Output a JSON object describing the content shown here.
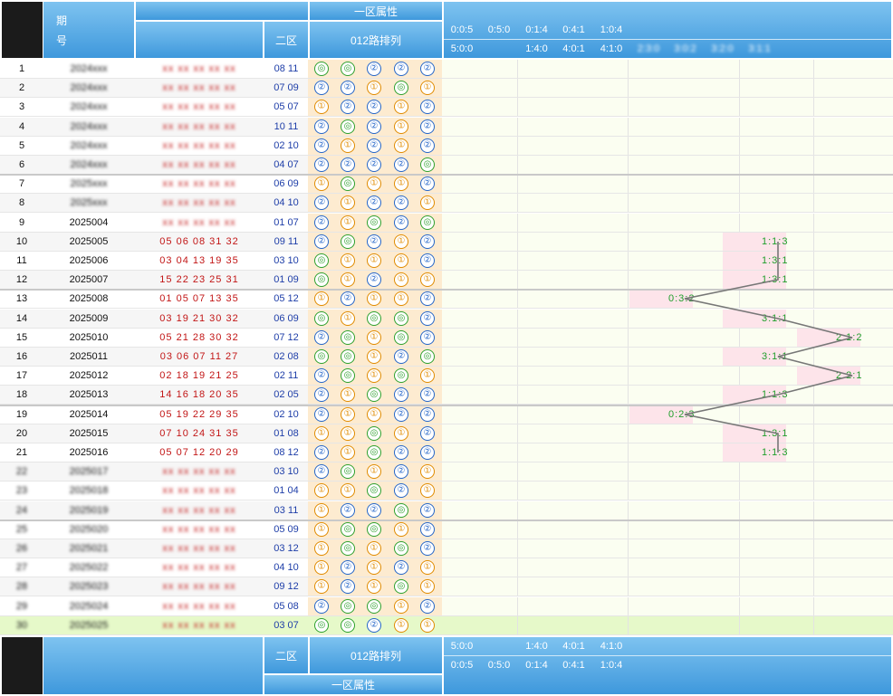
{
  "header": {
    "issue_label_top": "期",
    "issue_label_bottom": "号",
    "zone2_label": "二区",
    "pattern_label": "012路排列",
    "zone1_attr_label": "一区属性",
    "ratios_row1": [
      "0:0:5",
      "0:5:0",
      "0:1:4",
      "0:4:1",
      "1:0:4"
    ],
    "ratios_row2": [
      "5:0:0",
      "",
      "1:4:0",
      "4:0:1",
      "4:1:0",
      "2:3:0",
      "3:0:2",
      "3:2:0",
      "3:1:1"
    ]
  },
  "footer": {
    "zone2_label": "二区",
    "pattern_label": "012路排列",
    "zone1_attr_label": "一区属性",
    "ratios_row1": [
      "5:0:0",
      "",
      "1:4:0",
      "4:0:1",
      "4:1:0"
    ],
    "ratios_row2": [
      "0:0:5",
      "0:5:0",
      "0:1:4",
      "0:4:1",
      "1:0:4"
    ]
  },
  "rows": [
    {
      "idx": "1",
      "issue": "2024xxx",
      "nums": "xx xx xx xx xx",
      "zone2": "08 11",
      "pattern": [
        "0",
        "0",
        "2",
        "2",
        "2"
      ],
      "value": "",
      "blur": true
    },
    {
      "idx": "2",
      "issue": "2024xxx",
      "nums": "xx xx xx xx xx",
      "zone2": "07 09",
      "pattern": [
        "2",
        "2",
        "1",
        "0",
        "1"
      ],
      "value": "",
      "blur": true
    },
    {
      "idx": "3",
      "issue": "2024xxx",
      "nums": "xx xx xx xx xx",
      "zone2": "05 07",
      "pattern": [
        "1",
        "2",
        "2",
        "1",
        "2"
      ],
      "value": "",
      "blur": true
    },
    {
      "idx": "4",
      "issue": "2024xxx",
      "nums": "xx xx xx xx xx",
      "zone2": "10 11",
      "pattern": [
        "2",
        "0",
        "2",
        "1",
        "2"
      ],
      "value": "",
      "blur": true
    },
    {
      "idx": "5",
      "issue": "2024xxx",
      "nums": "xx xx xx xx xx",
      "zone2": "02 10",
      "pattern": [
        "2",
        "1",
        "2",
        "1",
        "2"
      ],
      "value": "",
      "blur": true
    },
    {
      "idx": "6",
      "issue": "2024xxx",
      "nums": "xx xx xx xx xx",
      "zone2": "04 07",
      "pattern": [
        "2",
        "2",
        "2",
        "2",
        "0"
      ],
      "value": "",
      "blur": true
    },
    {
      "idx": "7",
      "issue": "2025xxx",
      "nums": "xx xx xx xx xx",
      "zone2": "06 09",
      "pattern": [
        "1",
        "0",
        "1",
        "1",
        "2"
      ],
      "value": "",
      "blur": true
    },
    {
      "idx": "8",
      "issue": "2025xxx",
      "nums": "xx xx xx xx xx",
      "zone2": "04 10",
      "pattern": [
        "2",
        "1",
        "2",
        "2",
        "1"
      ],
      "value": "",
      "blur": true
    },
    {
      "idx": "9",
      "issue": "2025004",
      "nums": "xx xx xx xx xx",
      "zone2": "01 07",
      "pattern": [
        "2",
        "1",
        "0",
        "2",
        "0"
      ],
      "value": "",
      "blur": false
    },
    {
      "idx": "10",
      "issue": "2025005",
      "nums": "05 06 08 31 32",
      "zone2": "09 11",
      "pattern": [
        "2",
        "0",
        "2",
        "1",
        "2"
      ],
      "value": "1:1:3",
      "blur": false
    },
    {
      "idx": "11",
      "issue": "2025006",
      "nums": "03 04 13 19 35",
      "zone2": "03 10",
      "pattern": [
        "0",
        "1",
        "1",
        "1",
        "2"
      ],
      "value": "1:3:1",
      "blur": false
    },
    {
      "idx": "12",
      "issue": "2025007",
      "nums": "15 22 23 25 31",
      "zone2": "01 09",
      "pattern": [
        "0",
        "1",
        "2",
        "1",
        "1"
      ],
      "value": "1:3:1",
      "blur": false
    },
    {
      "idx": "13",
      "issue": "2025008",
      "nums": "01 05 07 13 35",
      "zone2": "05 12",
      "pattern": [
        "1",
        "2",
        "1",
        "1",
        "2"
      ],
      "value": "0:3:2",
      "blur": false
    },
    {
      "idx": "14",
      "issue": "2025009",
      "nums": "03 19 21 30 32",
      "zone2": "06 09",
      "pattern": [
        "0",
        "1",
        "0",
        "0",
        "2"
      ],
      "value": "3:1:1",
      "blur": false
    },
    {
      "idx": "15",
      "issue": "2025010",
      "nums": "05 21 28 30 32",
      "zone2": "07 12",
      "pattern": [
        "2",
        "0",
        "1",
        "0",
        "2"
      ],
      "value": "2:1:2",
      "blur": false
    },
    {
      "idx": "16",
      "issue": "2025011",
      "nums": "03 06 07 11 27",
      "zone2": "02 08",
      "pattern": [
        "0",
        "0",
        "1",
        "2",
        "0"
      ],
      "value": "3:1:1",
      "blur": false
    },
    {
      "idx": "17",
      "issue": "2025012",
      "nums": "02 18 19 21 25",
      "zone2": "02 11",
      "pattern": [
        "2",
        "0",
        "1",
        "0",
        "1"
      ],
      "value": "2:2:1",
      "blur": false
    },
    {
      "idx": "18",
      "issue": "2025013",
      "nums": "14 16 18 20 35",
      "zone2": "02 05",
      "pattern": [
        "2",
        "1",
        "0",
        "2",
        "2"
      ],
      "value": "1:1:3",
      "blur": false
    },
    {
      "idx": "19",
      "issue": "2025014",
      "nums": "05 19 22 29 35",
      "zone2": "02 10",
      "pattern": [
        "2",
        "1",
        "1",
        "2",
        "2"
      ],
      "value": "0:2:3",
      "blur": false
    },
    {
      "idx": "20",
      "issue": "2025015",
      "nums": "07 10 24 31 35",
      "zone2": "01 08",
      "pattern": [
        "1",
        "1",
        "0",
        "1",
        "2"
      ],
      "value": "1:3:1",
      "blur": false
    },
    {
      "idx": "21",
      "issue": "2025016",
      "nums": "05 07 12 20 29",
      "zone2": "08 12",
      "pattern": [
        "2",
        "1",
        "0",
        "2",
        "2"
      ],
      "value": "1:1:3",
      "blur": false
    },
    {
      "idx": "22",
      "issue": "2025017",
      "nums": "xx xx xx xx xx",
      "zone2": "03 10",
      "pattern": [
        "2",
        "0",
        "1",
        "2",
        "1"
      ],
      "value": "",
      "blur": true
    },
    {
      "idx": "23",
      "issue": "2025018",
      "nums": "xx xx xx xx xx",
      "zone2": "01 04",
      "pattern": [
        "1",
        "1",
        "0",
        "2",
        "1"
      ],
      "value": "",
      "blur": true
    },
    {
      "idx": "24",
      "issue": "2025019",
      "nums": "xx xx xx xx xx",
      "zone2": "03 11",
      "pattern": [
        "1",
        "2",
        "2",
        "0",
        "2"
      ],
      "value": "",
      "blur": true
    },
    {
      "idx": "25",
      "issue": "2025020",
      "nums": "xx xx xx xx xx",
      "zone2": "05 09",
      "pattern": [
        "1",
        "0",
        "0",
        "1",
        "2"
      ],
      "value": "",
      "blur": true
    },
    {
      "idx": "26",
      "issue": "2025021",
      "nums": "xx xx xx xx xx",
      "zone2": "03 12",
      "pattern": [
        "1",
        "0",
        "1",
        "0",
        "2"
      ],
      "value": "",
      "blur": true
    },
    {
      "idx": "27",
      "issue": "2025022",
      "nums": "xx xx xx xx xx",
      "zone2": "04 10",
      "pattern": [
        "1",
        "2",
        "1",
        "2",
        "1"
      ],
      "value": "",
      "blur": true
    },
    {
      "idx": "28",
      "issue": "2025023",
      "nums": "xx xx xx xx xx",
      "zone2": "09 12",
      "pattern": [
        "1",
        "2",
        "1",
        "0",
        "1"
      ],
      "value": "",
      "blur": true
    },
    {
      "idx": "29",
      "issue": "2025024",
      "nums": "xx xx xx xx xx",
      "zone2": "05 08",
      "pattern": [
        "2",
        "0",
        "0",
        "1",
        "2"
      ],
      "value": "",
      "blur": true
    },
    {
      "idx": "30",
      "issue": "2025025",
      "nums": "xx xx xx xx xx",
      "zone2": "03 07",
      "pattern": [
        "0",
        "0",
        "2",
        "1",
        "1"
      ],
      "value": "",
      "blur": true,
      "highlight": true
    }
  ],
  "colors": {
    "header_blue": "#3e98dc",
    "pattern_bg": "#fdebd0",
    "number_red": "#c21616",
    "zone2_blue": "#1e3ea8",
    "value_green": "#1f9e2a",
    "trend_line": "#777777"
  }
}
